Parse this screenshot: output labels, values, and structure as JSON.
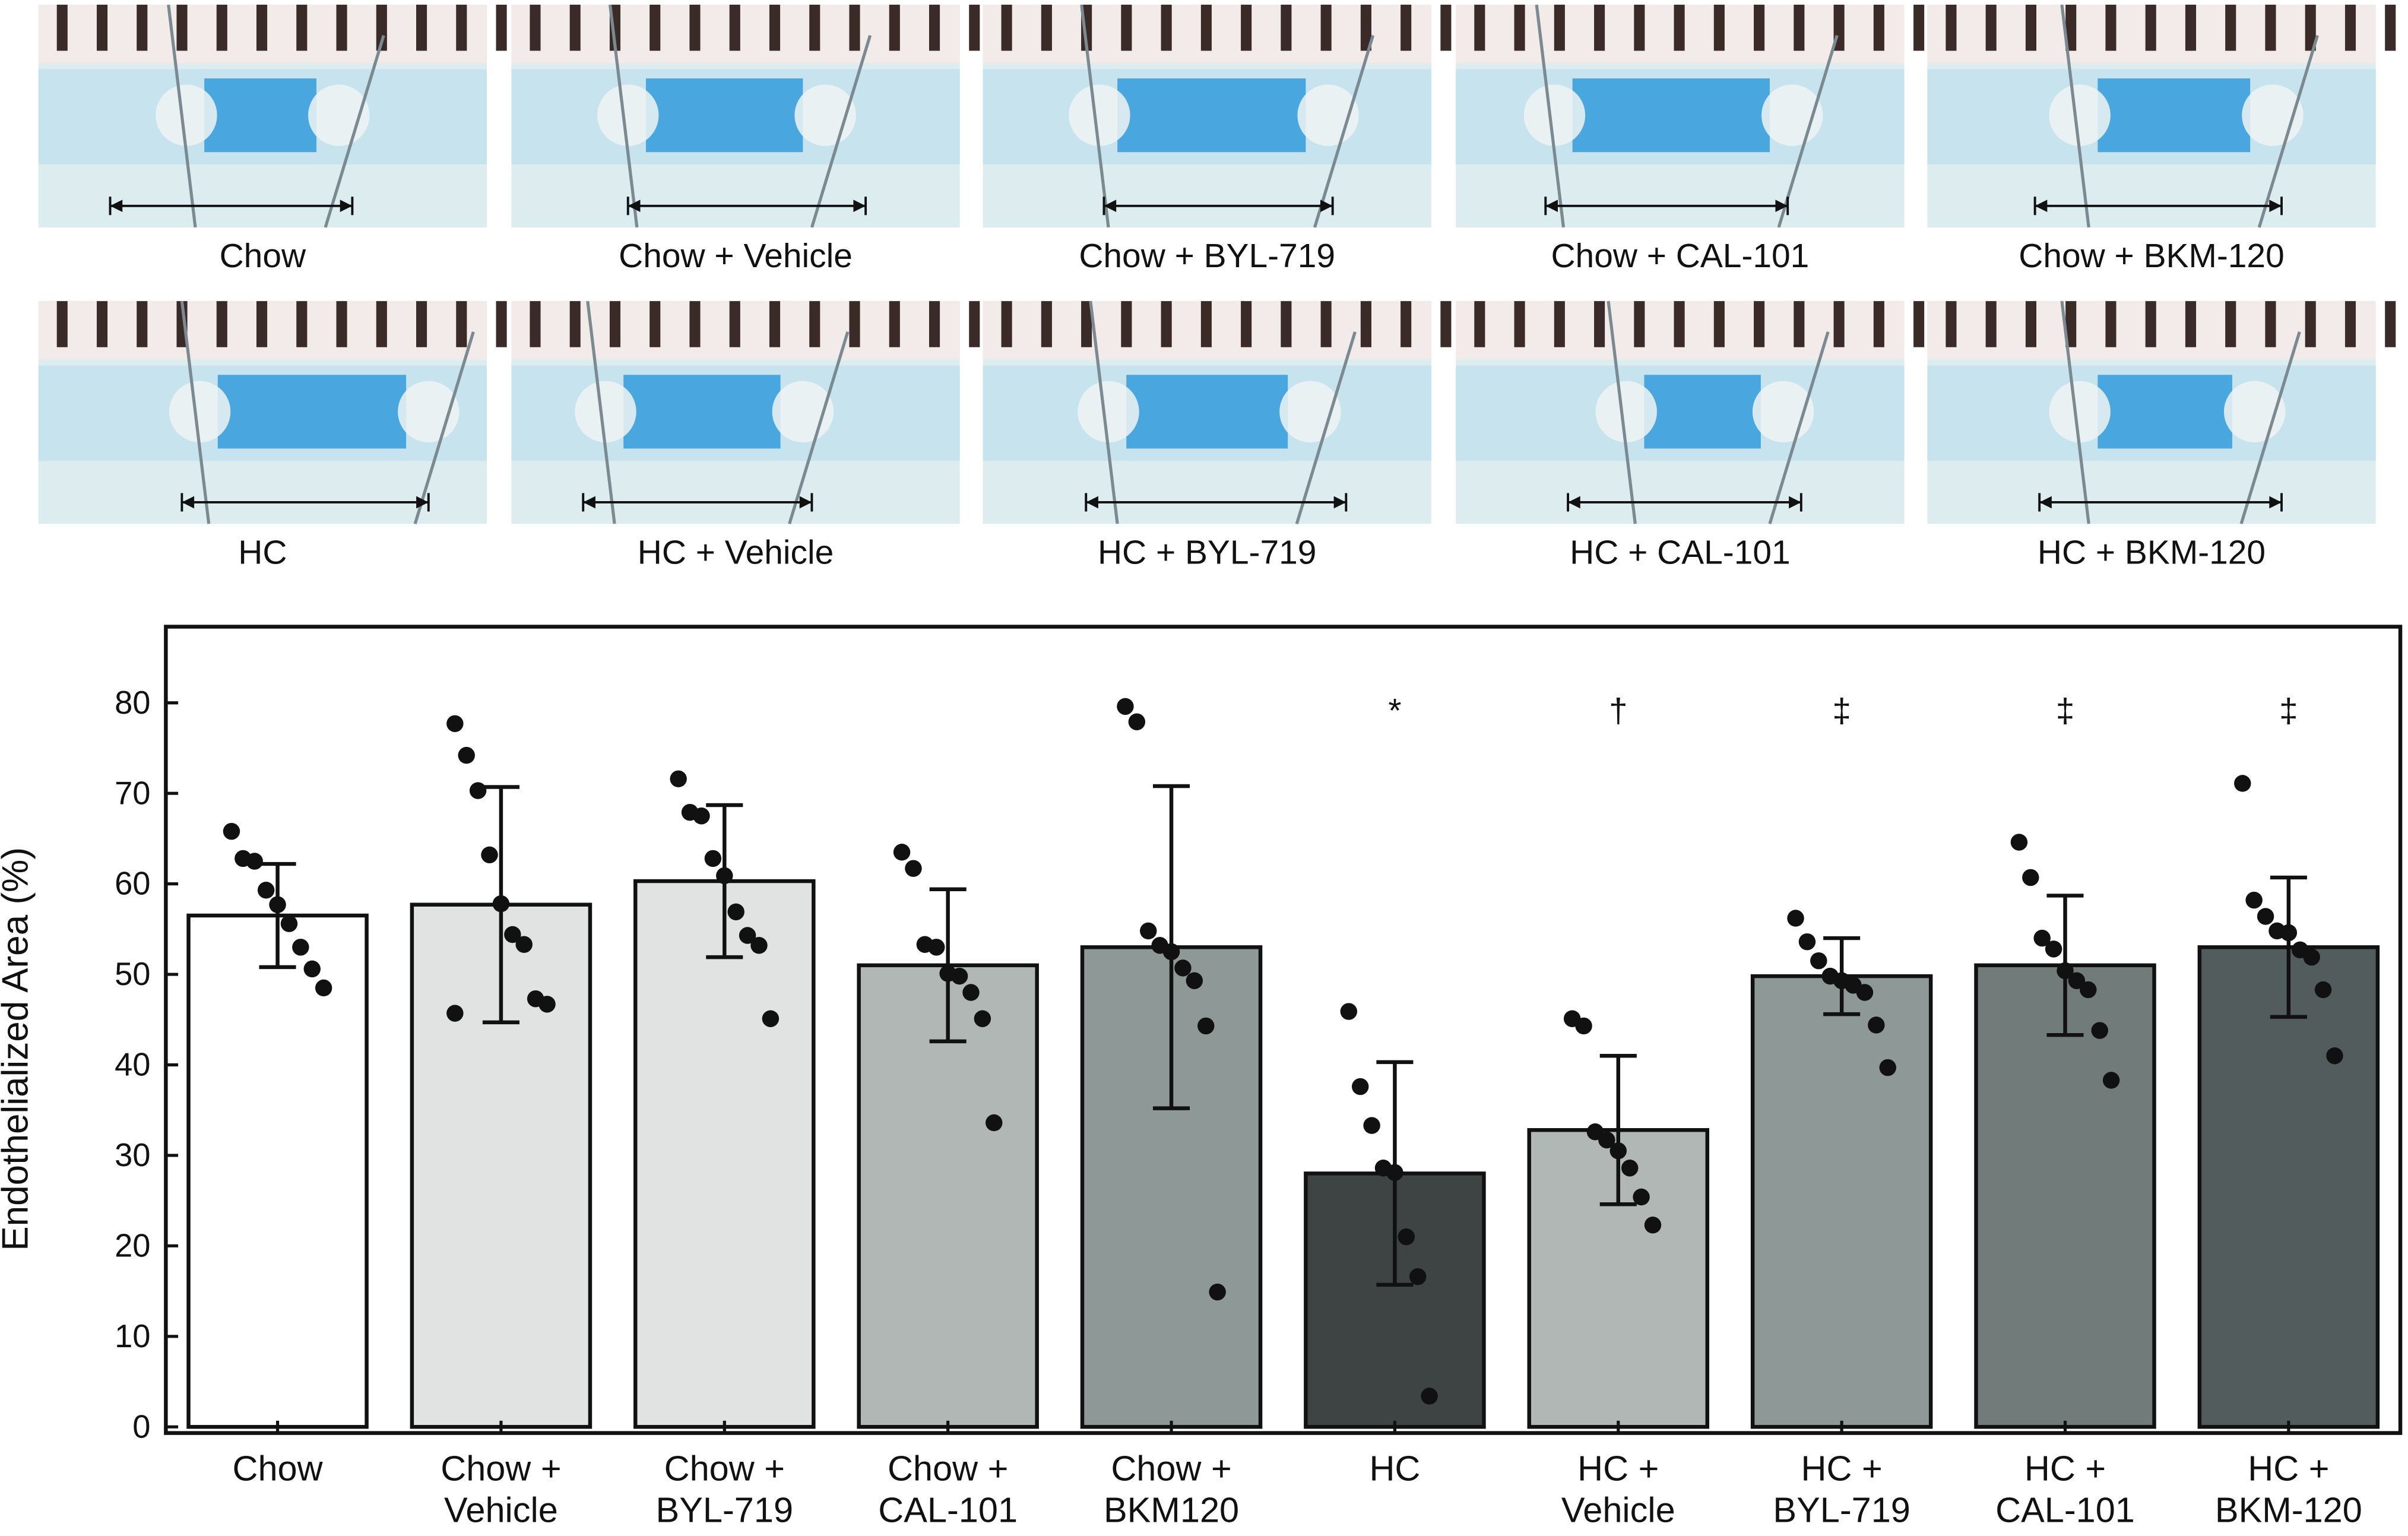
{
  "panels": [
    {
      "caption": "Chow"
    },
    {
      "caption": "Chow + Vehicle"
    },
    {
      "caption": "Chow + BYL-719"
    },
    {
      "caption": "Chow + CAL-101"
    },
    {
      "caption": "Chow + BKM-120"
    },
    {
      "caption": "HC"
    },
    {
      "caption": "HC + Vehicle"
    },
    {
      "caption": "HC + BYL-719"
    },
    {
      "caption": "HC + CAL-101"
    },
    {
      "caption": "HC + BKM-120"
    }
  ],
  "chart_data": {
    "type": "bar",
    "ylabel": "Endothelialized Area (%)",
    "categories": [
      [
        "Chow"
      ],
      [
        "Chow +",
        "Vehicle"
      ],
      [
        "Chow +",
        "BYL-719"
      ],
      [
        "Chow +",
        "CAL-101"
      ],
      [
        "Chow +",
        "BKM120"
      ],
      [
        "HC"
      ],
      [
        "HC +",
        "Vehicle"
      ],
      [
        "HC +",
        "BYL-719"
      ],
      [
        "HC +",
        "CAL-101"
      ],
      [
        "HC +",
        "BKM-120"
      ]
    ],
    "values": [
      56.5,
      57.7,
      60.3,
      51,
      53,
      28,
      32.8,
      49.8,
      51,
      53
    ],
    "errors": [
      5.7,
      13,
      8.4,
      8.4,
      17.8,
      12.3,
      8.2,
      4.2,
      7.7,
      7.7
    ],
    "colors": [
      "#ffffff",
      "#e0e3e2",
      "#e0e3e2",
      "#b0b7b5",
      "#8e9896",
      "#3e4444",
      "#b0b7b5",
      "#8e9896",
      "#717c7a",
      "#525c5c"
    ],
    "points": [
      [
        65.8,
        62.8,
        62.5,
        59.3,
        57.7,
        55.6,
        53.0,
        50.6,
        48.5
      ],
      [
        77.7,
        74.2,
        70.3,
        63.2,
        57.8,
        54.4,
        53.3,
        47.3,
        46.7,
        45.7
      ],
      [
        71.6,
        67.9,
        67.5,
        62.8,
        60.9,
        56.9,
        54.3,
        53.2,
        45.1
      ],
      [
        63.5,
        61.7,
        53.3,
        53.0,
        50.1,
        49.8,
        48.0,
        45.1,
        33.6
      ],
      [
        79.6,
        77.9,
        54.8,
        53.2,
        52.5,
        50.7,
        49.3,
        44.3,
        14.9
      ],
      [
        45.9,
        37.6,
        33.3,
        28.6,
        28.1,
        21.0,
        16.6,
        3.4
      ],
      [
        45.1,
        44.3,
        32.6,
        31.7,
        30.5,
        28.6,
        25.4,
        22.3
      ],
      [
        56.2,
        53.6,
        51.5,
        49.8,
        49.3,
        48.8,
        48.0,
        44.4,
        39.7
      ],
      [
        64.6,
        60.7,
        54.0,
        52.8,
        50.4,
        49.3,
        48.3,
        43.8,
        38.3
      ],
      [
        71.1,
        58.2,
        56.4,
        54.8,
        54.6,
        52.7,
        51.9,
        48.3,
        41.0
      ]
    ],
    "annotations": [
      null,
      null,
      null,
      null,
      null,
      "*",
      "†",
      "‡",
      "‡",
      "‡"
    ],
    "ylim": [
      0,
      84
    ],
    "yticks": [
      0,
      10,
      20,
      30,
      40,
      50,
      60,
      70,
      80
    ],
    "grid": false
  }
}
